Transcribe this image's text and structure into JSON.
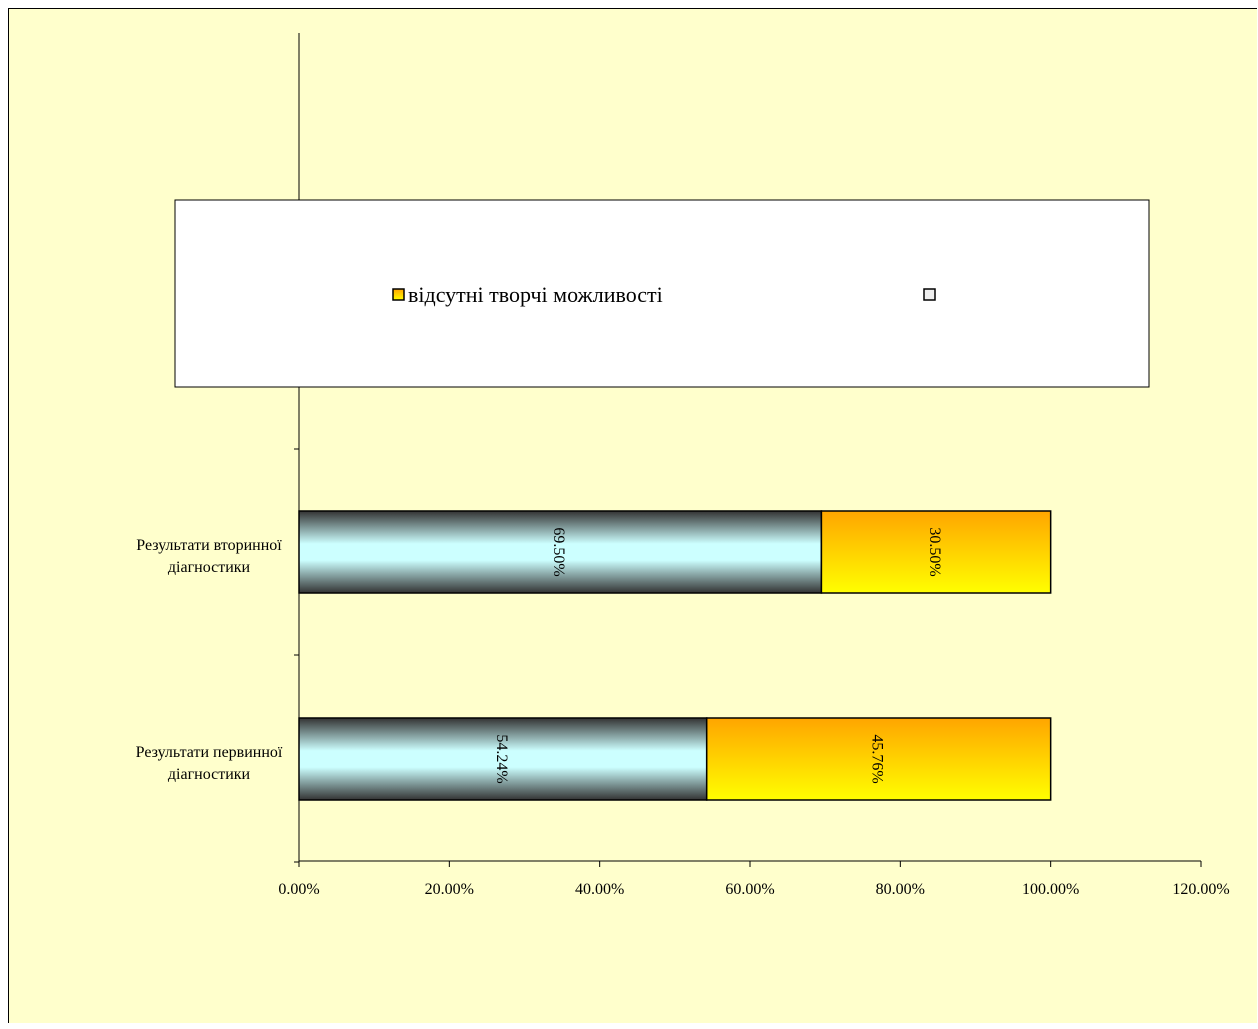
{
  "chart_data": {
    "type": "bar",
    "orientation": "horizontal",
    "stacked": true,
    "categories": [
      "Результати первинної діагностики",
      "Результати вторинної діагностики"
    ],
    "category_lines": [
      [
        "Результати первинної",
        "діагностики"
      ],
      [
        "Результати вторинної",
        "діагностики"
      ]
    ],
    "series": [
      {
        "values": [
          54.24,
          69.5
        ],
        "labels": [
          "54.24%",
          "69.50%"
        ],
        "gradient": [
          "#333333",
          "#ccffff"
        ]
      },
      {
        "name": "відсутні творчі можливості",
        "values": [
          45.76,
          30.5
        ],
        "labels": [
          "45.76%",
          "30.50%"
        ],
        "gradient": [
          "#ffa500",
          "#ffff00"
        ]
      }
    ],
    "xlim": [
      0,
      120
    ],
    "x_ticks": [
      0,
      20,
      40,
      60,
      80,
      100,
      120
    ],
    "x_tick_labels": [
      "0.00%",
      "20.00%",
      "40.00%",
      "60.00%",
      "80.00%",
      "100.00%",
      "120.00%"
    ],
    "legend": {
      "placement": "top",
      "entries": [
        {
          "label": "відсутні творчі можливості",
          "color": "#ffa500"
        },
        {
          "label": "",
          "color": "#eeeeee"
        }
      ]
    },
    "grid": false,
    "background": "#ffffcc"
  }
}
